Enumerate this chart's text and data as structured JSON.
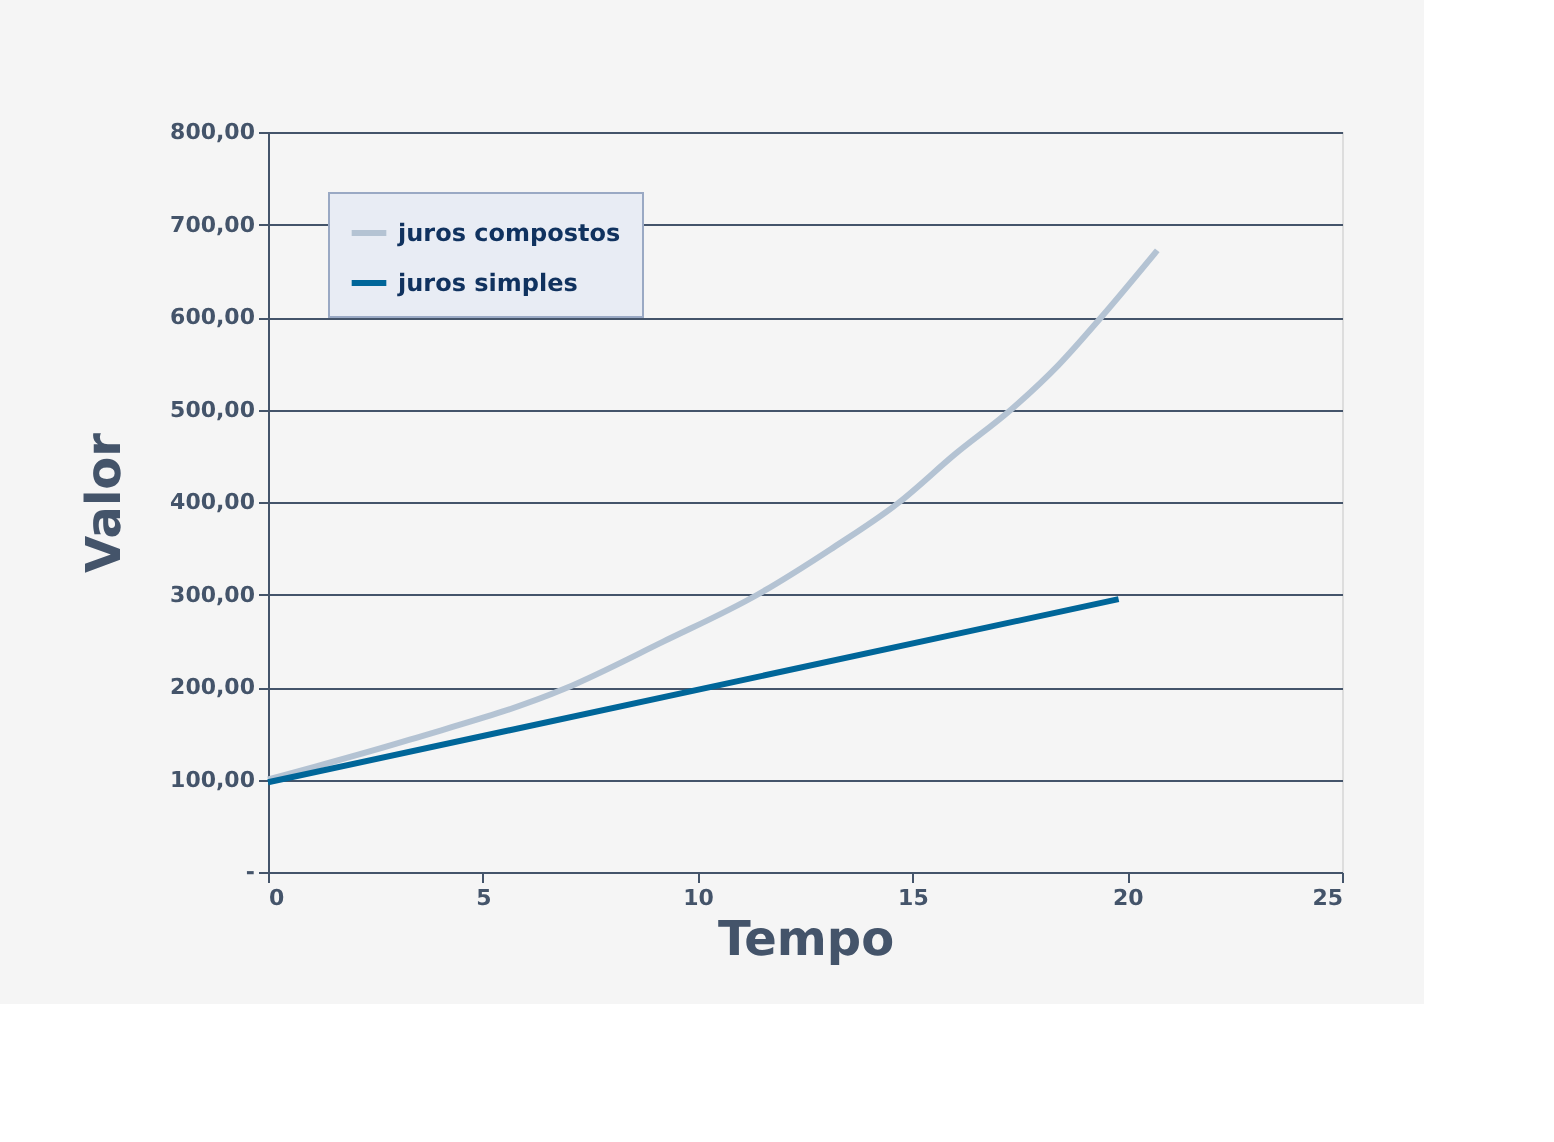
{
  "chart_data": {
    "type": "line",
    "xlabel": "Tempo",
    "ylabel": "Valor",
    "series": [
      {
        "name": "juros compostos",
        "color": "#b4c3d3",
        "x": [
          0,
          3.3,
          6.9,
          9.2,
          11.4,
          13.1,
          14.7,
          16,
          17.3,
          18.4,
          19.4,
          20.7
        ],
        "values": [
          100,
          143,
          198,
          249,
          300,
          349,
          400,
          452,
          500,
          548,
          600,
          672
        ]
      },
      {
        "name": "juros simples",
        "color": "#006699",
        "x": [
          0,
          19.8
        ],
        "values": [
          97,
          295
        ]
      }
    ],
    "xlim": [
      0,
      25
    ],
    "xticks": [
      0,
      5,
      10,
      15,
      20,
      25
    ],
    "ylim": [
      0,
      800
    ],
    "yticks": [
      {
        "value": 0,
        "label": "-"
      },
      {
        "value": 100,
        "label": "100,00"
      },
      {
        "value": 200,
        "label": "200,00"
      },
      {
        "value": 300,
        "label": "300,00"
      },
      {
        "value": 400,
        "label": "400,00"
      },
      {
        "value": 500,
        "label": "500,00"
      },
      {
        "value": 600,
        "label": "600,00"
      },
      {
        "value": 700,
        "label": "700,00"
      },
      {
        "value": 800,
        "label": "800,00"
      }
    ],
    "grid": "y",
    "legend": "top left",
    "marker": "none",
    "line_style": "solid"
  }
}
